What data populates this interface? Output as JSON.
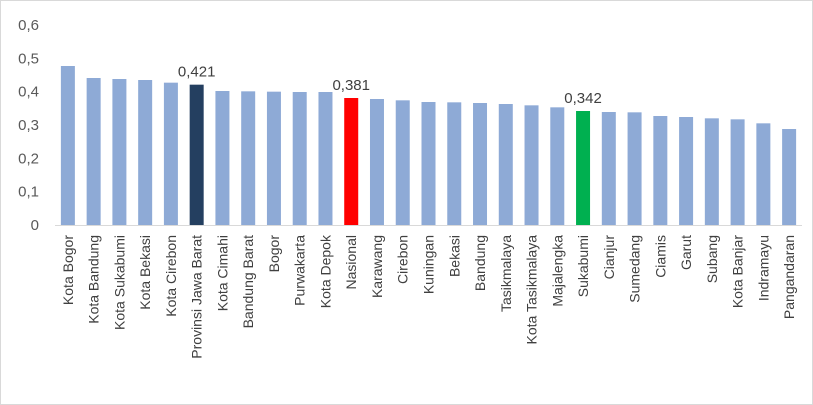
{
  "chart_data": {
    "type": "bar",
    "title": "",
    "xlabel": "",
    "ylabel": "",
    "ylim": [
      0,
      0.6
    ],
    "yticks": [
      "0",
      "0,1",
      "0,2",
      "0,3",
      "0,4",
      "0,5",
      "0,6"
    ],
    "grid": false,
    "legend": "none",
    "colors": {
      "default": "#8eaad6",
      "province": "#243f60",
      "national": "#ff0000",
      "sukabumi": "#00b050",
      "axis": "#d9d9d9"
    },
    "categories": [
      "Kota Bogor",
      "Kota Bandung",
      "Kota Sukabumi",
      "Kota Bekasi",
      "Kota Cirebon",
      "Provinsi Jawa Barat",
      "Kota Cimahi",
      "Bandung Barat",
      "Bogor",
      "Purwakarta",
      "Kota Depok",
      "Nasional",
      "Karawang",
      "Cirebon",
      "Kuningan",
      "Bekasi",
      "Bandung",
      "Tasikmalaya",
      "Kota Tasikmalaya",
      "Majalengka",
      "Sukabumi",
      "Cianjur",
      "Sumedang",
      "Ciamis",
      "Garut",
      "Subang",
      "Kota Banjar",
      "Indramayu",
      "Pangandaran"
    ],
    "values": [
      0.477,
      0.441,
      0.438,
      0.435,
      0.427,
      0.421,
      0.402,
      0.401,
      0.4,
      0.399,
      0.399,
      0.381,
      0.378,
      0.374,
      0.369,
      0.368,
      0.366,
      0.363,
      0.359,
      0.353,
      0.342,
      0.339,
      0.338,
      0.327,
      0.324,
      0.32,
      0.317,
      0.305,
      0.288
    ],
    "bar_colors": [
      "default",
      "default",
      "default",
      "default",
      "default",
      "province",
      "default",
      "default",
      "default",
      "default",
      "default",
      "national",
      "default",
      "default",
      "default",
      "default",
      "default",
      "default",
      "default",
      "default",
      "sukabumi",
      "default",
      "default",
      "default",
      "default",
      "default",
      "default",
      "default",
      "default"
    ],
    "data_labels": [
      {
        "category": "Provinsi Jawa Barat",
        "text": "0,421"
      },
      {
        "category": "Nasional",
        "text": "0,381"
      },
      {
        "category": "Sukabumi",
        "text": "0,342"
      }
    ]
  }
}
